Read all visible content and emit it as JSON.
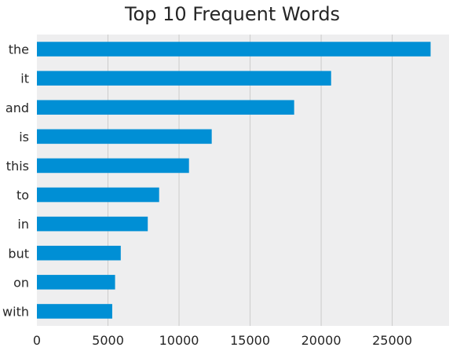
{
  "chart_data": {
    "type": "bar",
    "orientation": "horizontal",
    "title": "Top 10 Frequent Words",
    "xlabel": "",
    "ylabel": "",
    "categories": [
      "the",
      "it",
      "and",
      "is",
      "this",
      "to",
      "in",
      "but",
      "on",
      "with"
    ],
    "values": [
      27700,
      20700,
      18100,
      12300,
      10700,
      8600,
      7800,
      5900,
      5500,
      5300
    ],
    "xlim": [
      0,
      29000
    ],
    "xticks": [
      0,
      5000,
      10000,
      15000,
      20000,
      25000
    ],
    "xtick_labels": [
      "0",
      "5000",
      "10000",
      "15000",
      "20000",
      "25000"
    ],
    "grid": "vertical",
    "legend": "none",
    "colors": {
      "bar": "#008fd5",
      "background": "#eeeeef",
      "grid": "#cbcbcb",
      "text": "#262626"
    }
  }
}
